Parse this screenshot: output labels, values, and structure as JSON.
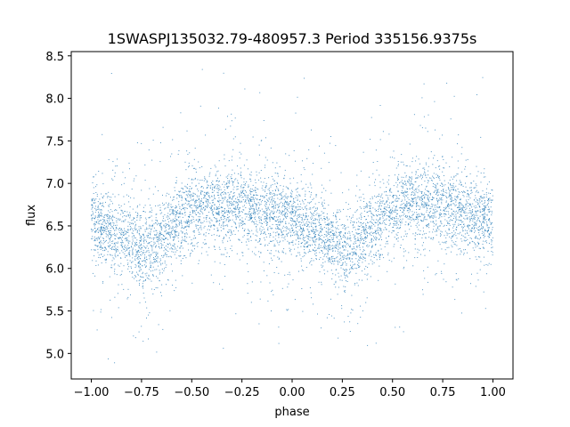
{
  "chart_data": {
    "type": "scatter",
    "title": "1SWASPJ135032.79-480957.3 Period 335156.9375s",
    "xlabel": "phase",
    "ylabel": "flux",
    "xlim": [
      -1.1,
      1.1
    ],
    "ylim": [
      4.7,
      8.55
    ],
    "xticks": [
      -1.0,
      -0.75,
      -0.5,
      -0.25,
      0.0,
      0.25,
      0.5,
      0.75,
      1.0
    ],
    "xtick_labels": [
      "−1.00",
      "−0.75",
      "−0.50",
      "−0.25",
      "0.00",
      "0.25",
      "0.50",
      "0.75",
      "1.00"
    ],
    "yticks": [
      5.0,
      5.5,
      6.0,
      6.5,
      7.0,
      7.5,
      8.0,
      8.5
    ],
    "ytick_labels": [
      "5.0",
      "5.5",
      "6.0",
      "6.5",
      "7.0",
      "7.5",
      "8.0",
      "8.5"
    ],
    "grid": false,
    "marker_color": "#1f77b4",
    "series": [
      {
        "x": [
          -1.0,
          -0.9,
          -0.8,
          -0.75,
          -0.7,
          -0.6,
          -0.5,
          -0.4,
          -0.25,
          -0.1,
          0.0,
          0.1,
          0.2,
          0.25,
          0.3,
          0.4,
          0.5,
          0.6,
          0.75,
          0.9,
          1.0
        ],
        "y": [
          6.55,
          6.45,
          6.3,
          6.25,
          6.25,
          6.5,
          6.65,
          6.75,
          6.72,
          6.65,
          6.55,
          6.45,
          6.3,
          6.25,
          6.25,
          6.5,
          6.65,
          6.75,
          6.72,
          6.65,
          6.55
        ]
      }
    ]
  }
}
